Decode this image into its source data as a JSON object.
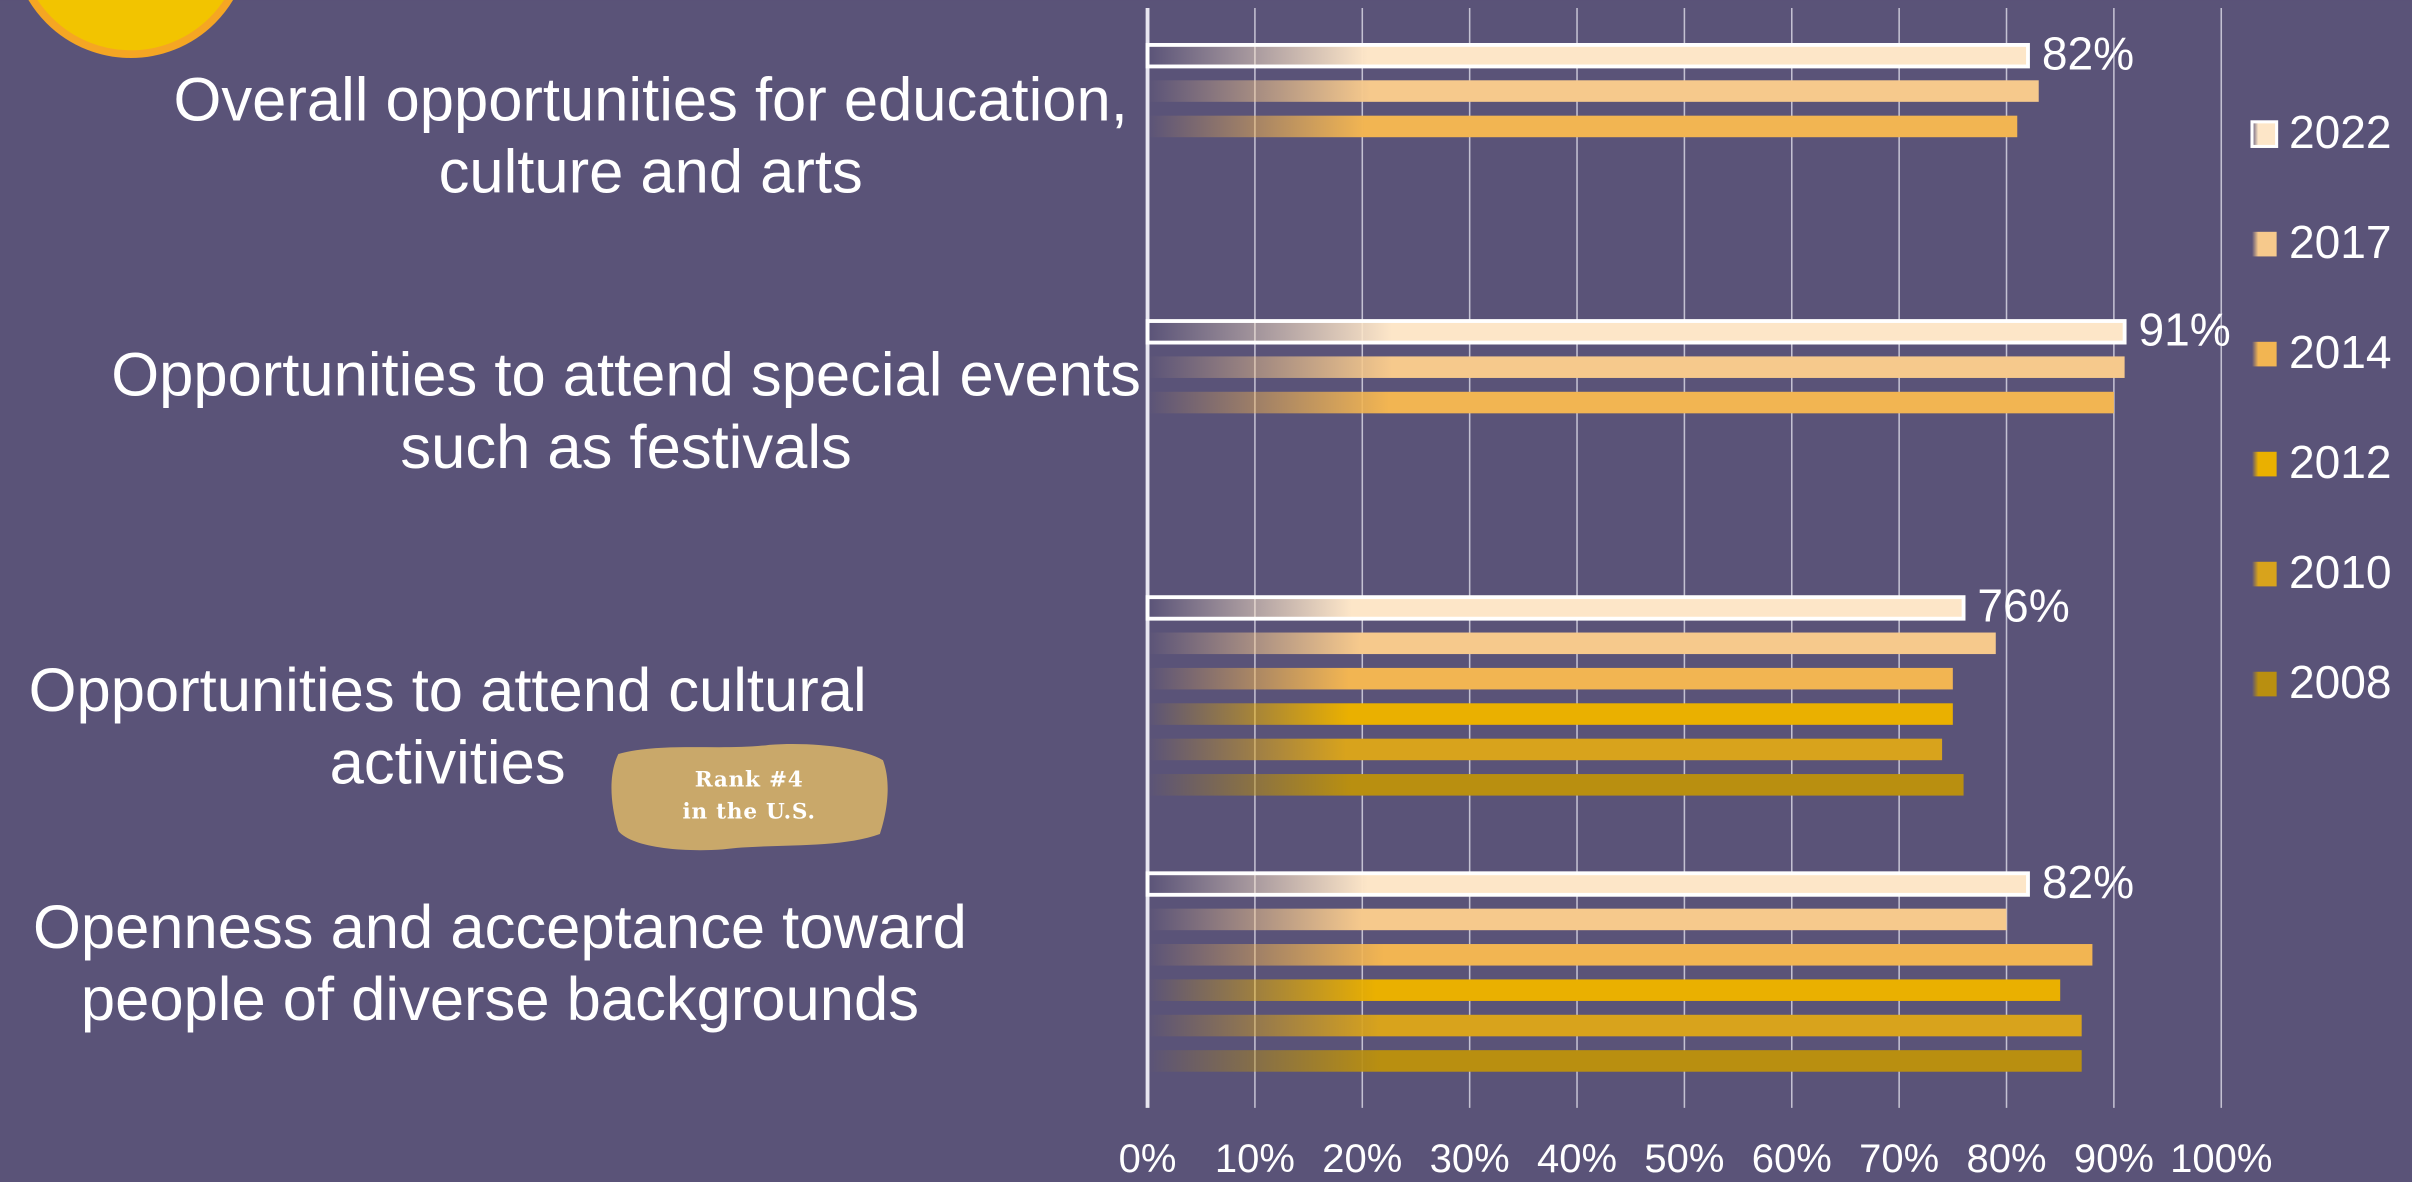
{
  "chart_data": {
    "type": "bar",
    "orientation": "horizontal",
    "categories": [
      "Overall opportunities for education,\nculture and arts",
      "Opportunities to attend special events\nsuch as festivals",
      "Opportunities to attend cultural\nactivities",
      "Openness and acceptance toward\npeople of diverse backgrounds"
    ],
    "series": [
      {
        "name": "2022",
        "color": "#fde6c8",
        "values": [
          82,
          91,
          76,
          82
        ],
        "value_labels": [
          "82%",
          "91%",
          "76%",
          "82%"
        ]
      },
      {
        "name": "2017",
        "color": "#f6c98c",
        "values": [
          83,
          91,
          79,
          80
        ]
      },
      {
        "name": "2014",
        "color": "#f2b552",
        "values": [
          81,
          90,
          75,
          88
        ]
      },
      {
        "name": "2012",
        "color": "#eab000",
        "values": [
          null,
          null,
          75,
          85
        ]
      },
      {
        "name": "2010",
        "color": "#d8a31c",
        "values": [
          null,
          null,
          74,
          87
        ]
      },
      {
        "name": "2008",
        "color": "#b98f10",
        "values": [
          null,
          null,
          76,
          87
        ]
      }
    ],
    "xlim": [
      0,
      100
    ],
    "xticks": [
      {
        "value": 0,
        "label": "0%"
      },
      {
        "value": 10,
        "label": "10%"
      },
      {
        "value": 20,
        "label": "20%"
      },
      {
        "value": 30,
        "label": "30%"
      },
      {
        "value": 40,
        "label": "40%"
      },
      {
        "value": 50,
        "label": "50%"
      },
      {
        "value": 60,
        "label": "60%"
      },
      {
        "value": 70,
        "label": "70%"
      },
      {
        "value": 80,
        "label": "80%"
      },
      {
        "value": 90,
        "label": "90%"
      },
      {
        "value": 100,
        "label": "100%"
      }
    ],
    "grid": true,
    "legend": "right",
    "annotation": "Rank #4\nin the U.S."
  }
}
